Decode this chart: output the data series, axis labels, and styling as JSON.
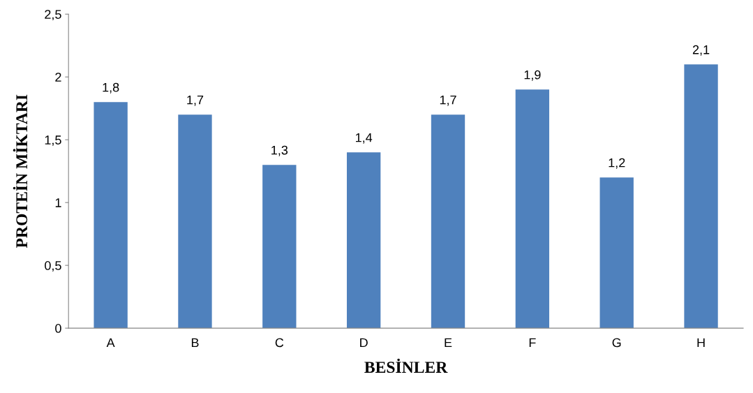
{
  "chart_data": {
    "type": "bar",
    "xlabel": "BESİNLER",
    "ylabel": "PROTEİN MİKTARI",
    "categories": [
      "A",
      "B",
      "C",
      "D",
      "E",
      "F",
      "G",
      "H"
    ],
    "values": [
      1.8,
      1.7,
      1.3,
      1.4,
      1.7,
      1.9,
      1.2,
      2.1
    ],
    "value_labels": [
      "1,8",
      "1,7",
      "1,3",
      "1,4",
      "1,7",
      "1,9",
      "1,2",
      "2,1"
    ],
    "color": "#4f81bd",
    "ylim": [
      0,
      2.5
    ],
    "yticks": [
      0,
      {
        "value": 0.5,
        "label": "0,5"
      },
      1,
      {
        "value": 1.5,
        "label": "1,5"
      },
      2,
      {
        "value": 2.5,
        "label": "2,5"
      }
    ],
    "grid": false,
    "legend": false
  }
}
